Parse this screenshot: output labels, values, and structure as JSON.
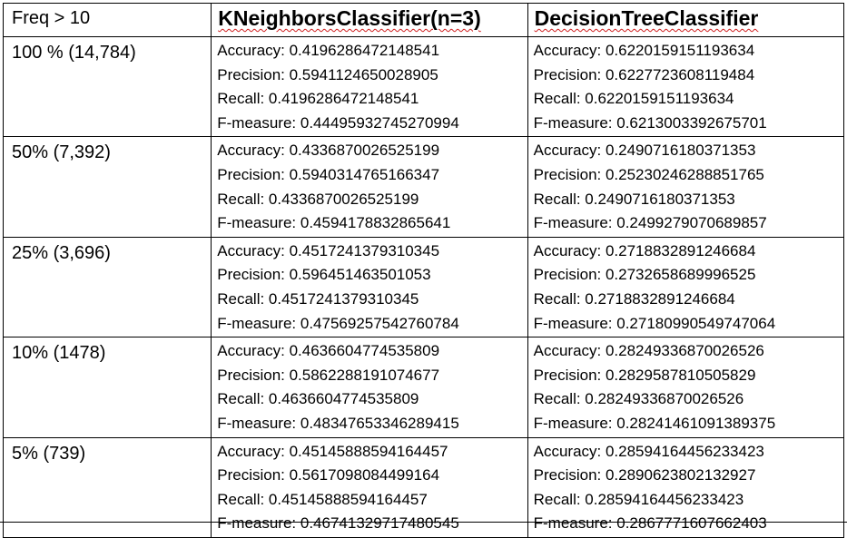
{
  "header": {
    "freq_label": "Freq > 10",
    "models": [
      "KNeighborsClassifier(n=3)",
      "DecisionTreeClassifier"
    ]
  },
  "rows": [
    {
      "label": "100 % (14,784)",
      "knn": [
        "Accuracy: 0.4196286472148541",
        "Precision: 0.5941124650028905",
        "Recall: 0.4196286472148541",
        "F-measure: 0.44495932745270994"
      ],
      "dt": [
        "Accuracy: 0.6220159151193634",
        "Precision: 0.6227723608119484",
        "Recall: 0.6220159151193634",
        "F-measure: 0.6213003392675701"
      ]
    },
    {
      "label": "50% (7,392)",
      "knn": [
        "Accuracy: 0.4336870026525199",
        "Precision: 0.5940314765166347",
        "Recall: 0.4336870026525199",
        "F-measure: 0.4594178832865641"
      ],
      "dt": [
        "Accuracy: 0.2490716180371353",
        "Precision: 0.25230246288851765",
        "Recall: 0.2490716180371353",
        "F-measure: 0.2499279070689857"
      ]
    },
    {
      "label": "25% (3,696)",
      "knn": [
        "Accuracy: 0.4517241379310345",
        "Precision: 0.596451463501053",
        "Recall: 0.4517241379310345",
        "F-measure: 0.47569257542760784"
      ],
      "dt": [
        "Accuracy: 0.2718832891246684",
        "Precision: 0.2732658689996525",
        "Recall: 0.2718832891246684",
        "F-measure: 0.27180990549747064"
      ]
    },
    {
      "label": "10% (1478)",
      "knn": [
        "Accuracy: 0.4636604774535809",
        "Precision: 0.5862288191074677",
        "Recall: 0.4636604774535809",
        "F-measure: 0.48347653346289415"
      ],
      "dt": [
        "Accuracy: 0.28249336870026526",
        "Precision: 0.2829587810505829",
        "Recall: 0.28249336870026526",
        "F-measure: 0.28241461091389375"
      ]
    },
    {
      "label": "5% (739)",
      "knn": [
        "Accuracy: 0.45145888594164457",
        "Precision: 0.5617098084499164",
        "Recall: 0.45145888594164457",
        "F-measure: 0.46741329717480545"
      ],
      "dt": [
        "Accuracy: 0.28594164456233423",
        "Precision: 0.2890623802132927",
        "Recall: 0.28594164456233423",
        "F-measure: 0.2867771607662403"
      ]
    }
  ]
}
